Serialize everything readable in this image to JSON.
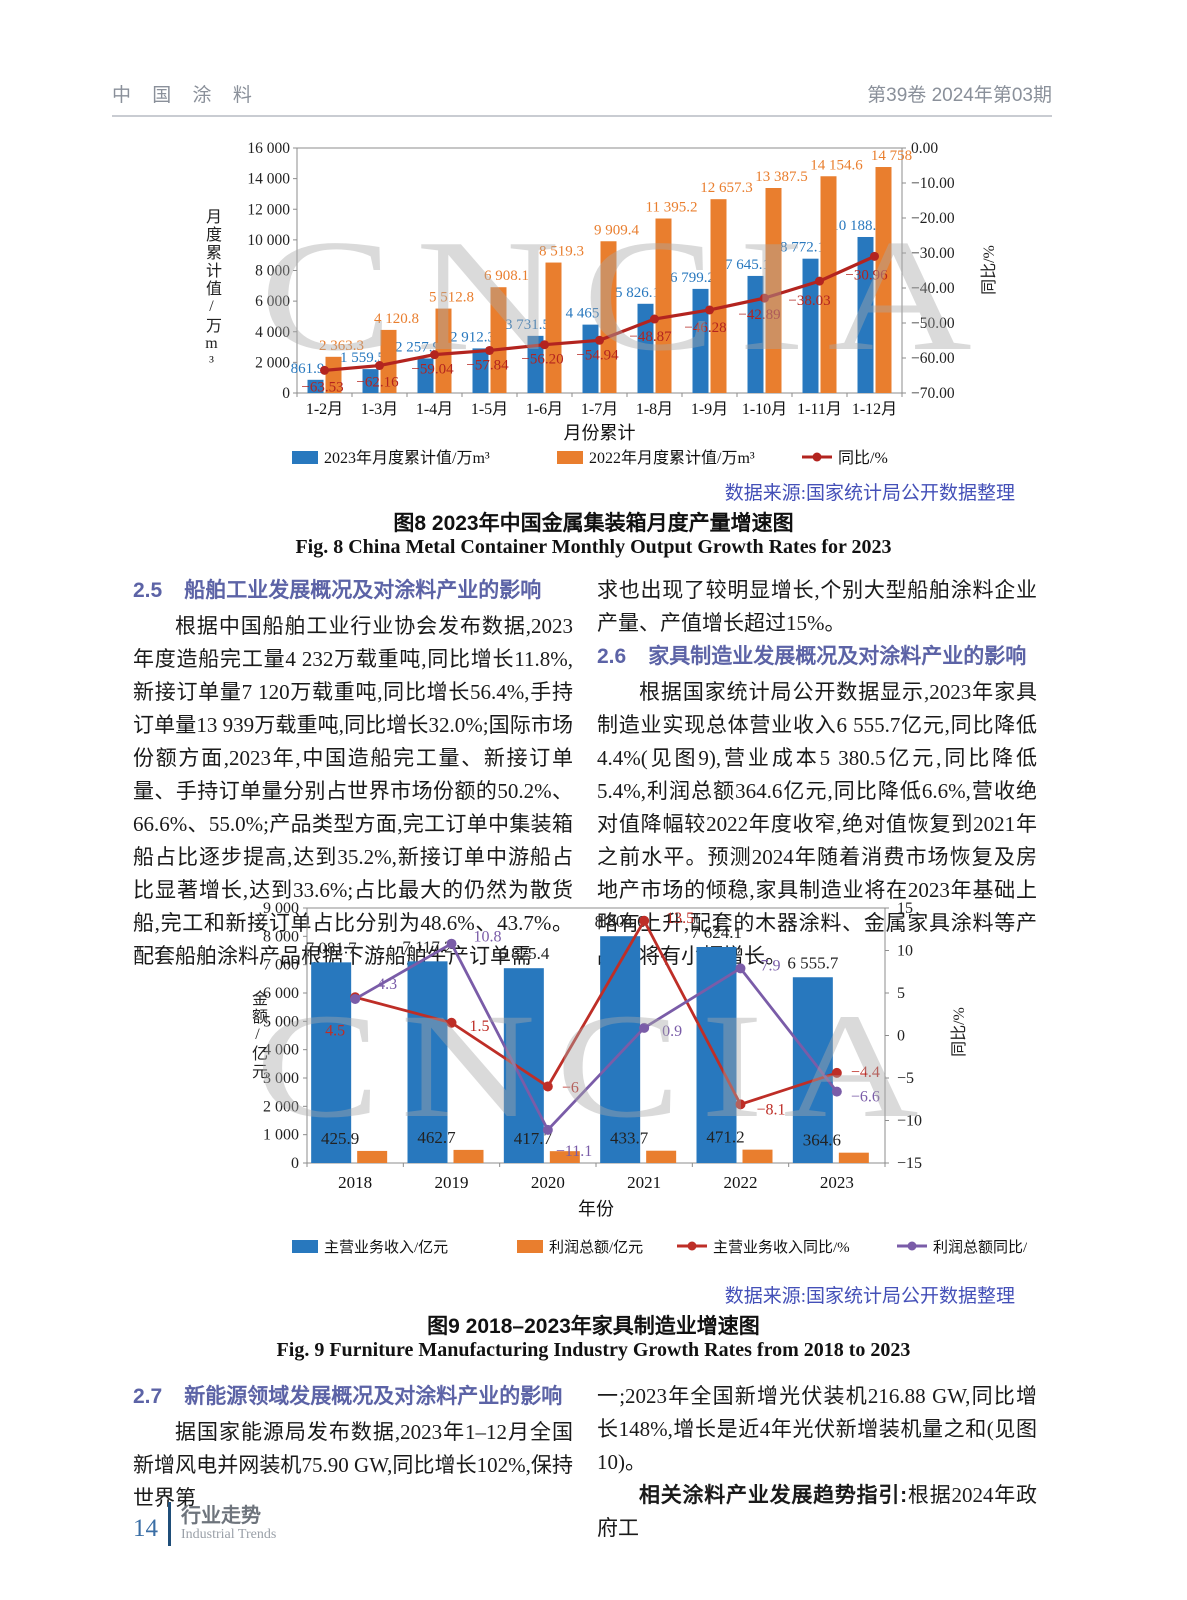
{
  "page": {
    "header": {
      "journal": "中 国 涂 料",
      "issue": "第39卷  2024年第03期"
    },
    "footer": {
      "page_number": "14",
      "section": "行业走势",
      "section_en": "Industrial Trends"
    }
  },
  "figure8": {
    "source": "数据来源:国家统计局公开数据整理",
    "caption_cn": "图8  2023年中国金属集装箱月度产量增速图",
    "caption_en": "Fig. 8  China Metal Container Monthly Output Growth Rates for 2023"
  },
  "figure9": {
    "source": "数据来源:国家统计局公开数据整理",
    "caption_cn": "图9  2018–2023年家具制造业增速图",
    "caption_en": "Fig. 9  Furniture Manufacturing Industry Growth Rates from 2018 to 2023"
  },
  "sections": {
    "s25": {
      "num": "2.5",
      "title": "船舶工业发展概况及对涂料产业的影响",
      "para_left": "根据中国船舶工业行业协会发布数据,2023年度造船完工量4 232万载重吨,同比增长11.8%,新接订单量7 120万载重吨,同比增长56.4%,手持订单量13 939万载重吨,同比增长32.0%;国际市场份额方面,2023年,中国造船完工量、新接订单量、手持订单量分别占世界市场份额的50.2%、66.6%、55.0%;产品类型方面,完工订单中集装箱船占比逐步提高,达到35.2%,新接订单中游船占比显著增长,达到33.6%;占比最大的仍然为散货船,完工和新接订单占比分别为48.6%、43.7%。配套船舶涂料产品根据下游船舶生产订单需",
      "para_right": "求也出现了较明显增长,个别大型船舶涂料企业产量、产值增长超过15%。"
    },
    "s26": {
      "num": "2.6",
      "title": "家具制造业发展概况及对涂料产业的影响",
      "para": "根据国家统计局公开数据显示,2023年家具制造业实现总体营业收入6 555.7亿元,同比降低4.4%(见图9),营业成本5 380.5亿元,同比降低5.4%,利润总额364.6亿元,同比降低6.6%,营收绝对值降幅较2022年度收窄,绝对值恢复到2021年之前水平。预测2024年随着消费市场恢复及房地产市场的倾稳,家具制造业将在2023年基础上略有上升,配套的木器涂料、金属家具涂料等产品也将有小幅增长。"
    },
    "s27": {
      "num": "2.7",
      "title": "新能源领域发展概况及对涂料产业的影响",
      "para_left": "据国家能源局发布数据,2023年1–12月全国新增风电并网装机75.90 GW,同比增长102%,保持世界第",
      "para_right": "一;2023年全国新增光伏装机216.88 GW,同比增长148%,增长是近4年光伏新增装机量之和(见图10)。",
      "lead_bold": "相关涂料产业发展趋势指引:",
      "lead_rest": "根据2024年政府工"
    }
  },
  "chart_data": [
    {
      "id": "fig8",
      "type": "bar+line combo",
      "title": "",
      "xlabel": "月份累计",
      "watermark": "CNCIA",
      "categories": [
        "1-2月",
        "1-3月",
        "1-4月",
        "1-5月",
        "1-6月",
        "1-7月",
        "1-8月",
        "1-9月",
        "1-10月",
        "1-11月",
        "1-12月"
      ],
      "left_axis": {
        "title": "月度累计值/万m³",
        "min": 0,
        "max": 16000,
        "step": 2000,
        "ticks": [
          "0",
          "2 000",
          "4 000",
          "6 000",
          "8 000",
          "10 000",
          "12 000",
          "14 000",
          "16 000"
        ]
      },
      "right_axis": {
        "title": "同比/%",
        "min": -70,
        "max": 0,
        "step": 10,
        "ticks": [
          "−70.00",
          "−60.00",
          "−50.00",
          "−40.00",
          "−30.00",
          "−20.00",
          "−10.00",
          "0.00"
        ]
      },
      "grid": false,
      "legend_position": "bottom",
      "series": [
        {
          "name": "2023年月度累计值/万m³",
          "type": "bar",
          "color": "#2878BE",
          "values": [
            861.9,
            1559.5,
            2257.9,
            2912.3,
            3731.5,
            4465,
            5826.1,
            6799.2,
            7645.1,
            8772.1,
            10188.7
          ],
          "labels": [
            "861.9",
            "1 559.5",
            "2 257.9",
            "2 912.3",
            "3 731.5",
            "4 465",
            "5 826.1",
            "6 799.2",
            "7 645.1",
            "8 772.1",
            "10 188.7"
          ]
        },
        {
          "name": "2022年月度累计值/万m³",
          "type": "bar",
          "color": "#E97E2E",
          "values": [
            2363.3,
            4120.8,
            5512.8,
            6908.1,
            8519.3,
            9909.4,
            11395.2,
            12657.3,
            13387.5,
            14154.6,
            14758
          ],
          "labels": [
            "2 363.3",
            "4 120.8",
            "5 512.8",
            "6 908.1",
            "8 519.3",
            "9 909.4",
            "11 395.2",
            "12 657.3",
            "13 387.5",
            "14 154.6",
            "14 758"
          ]
        },
        {
          "name": "同比/%",
          "type": "line",
          "axis": "right",
          "color": "#B3241F",
          "values": [
            -63.53,
            -62.16,
            -59.04,
            -57.84,
            -56.2,
            -54.94,
            -48.87,
            -46.28,
            -42.89,
            -38.03,
            -30.96
          ],
          "labels": [
            "−63.53",
            "−62.16",
            "−59.04",
            "−57.84",
            "−56.20",
            "−54.94",
            "−48.87",
            "−46.28",
            "−42.89",
            "−38.03",
            "−30.96"
          ]
        }
      ]
    },
    {
      "id": "fig9",
      "type": "bar+line combo",
      "title": "",
      "xlabel": "年份",
      "watermark": "CNCIA",
      "categories": [
        "2018",
        "2019",
        "2020",
        "2021",
        "2022",
        "2023"
      ],
      "left_axis": {
        "title": "金额/亿元",
        "min": 0,
        "max": 9000,
        "step": 1000,
        "ticks": [
          "0",
          "1 000",
          "2 000",
          "3 000",
          "4 000",
          "5 000",
          "6 000",
          "7 000",
          "8 000",
          "9 000"
        ]
      },
      "right_axis": {
        "title": "同比/%",
        "min": -15,
        "max": 15,
        "step": 5,
        "ticks": [
          "−15",
          "−10",
          "−5",
          "0",
          "5",
          "10",
          "15"
        ]
      },
      "grid": false,
      "legend_position": "bottom",
      "series": [
        {
          "name": "主营业务收入/亿元",
          "type": "bar",
          "color": "#2878BE",
          "values": [
            7081.7,
            7117.2,
            6875.4,
            8004.6,
            7624.1,
            6555.7
          ],
          "labels": [
            "7 081.7",
            "7 117.2",
            "6 875.4",
            "8 004.6",
            "7 624.1",
            "6 555.7"
          ],
          "label_color": "#222222"
        },
        {
          "name": "利润总额/亿元",
          "type": "bar",
          "color": "#E97E2E",
          "values": [
            425.9,
            462.7,
            417.7,
            433.7,
            471.2,
            364.6
          ],
          "labels": [
            "425.9",
            "462.7",
            "417.7",
            "433.7",
            "471.2",
            "364.6"
          ],
          "label_color": "#222222"
        },
        {
          "name": "主营业务收入同比/%",
          "type": "line",
          "axis": "right",
          "color": "#BE2E27",
          "values": [
            4.5,
            1.5,
            -6,
            13.5,
            -8.1,
            -4.4
          ],
          "labels": [
            "4.5",
            "1.5",
            "−6",
            "13.5",
            "−8.1",
            "−4.4"
          ]
        },
        {
          "name": "利润总额同比/%",
          "type": "line",
          "axis": "right",
          "color": "#7A5CA8",
          "values": [
            4.3,
            10.8,
            -11.1,
            0.9,
            7.9,
            -6.6
          ],
          "labels": [
            "4.3",
            "10.8",
            "−11.1",
            "0.9",
            "7.9",
            "−6.6"
          ]
        }
      ]
    }
  ]
}
